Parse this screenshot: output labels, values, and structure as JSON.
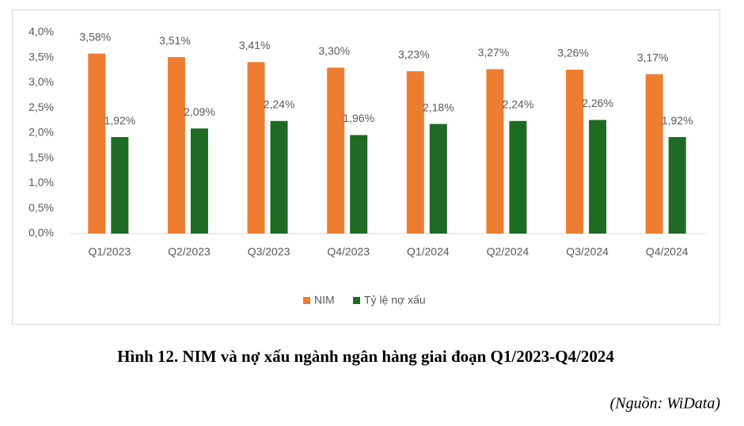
{
  "chart_data": {
    "type": "bar",
    "title": "Hình 12. NIM và nợ xấu ngành ngân hàng giai đoạn Q1/2023-Q4/2024",
    "source": "(Nguồn: WiData)",
    "categories": [
      "Q1/2023",
      "Q2/2023",
      "Q3/2023",
      "Q4/2023",
      "Q1/2024",
      "Q2/2024",
      "Q3/2024",
      "Q4/2024"
    ],
    "series": [
      {
        "name": "NIM",
        "color": "#ed7d31",
        "values": [
          3.58,
          3.51,
          3.41,
          3.3,
          3.23,
          3.27,
          3.26,
          3.17
        ],
        "value_labels": [
          "3,58%",
          "3,51%",
          "3,41%",
          "3,30%",
          "3,23%",
          "3,27%",
          "3,26%",
          "3,17%"
        ]
      },
      {
        "name": "Tỷ lệ nợ xấu",
        "color": "#1e6b23",
        "values": [
          1.92,
          2.09,
          2.24,
          1.96,
          2.18,
          2.24,
          2.26,
          1.92
        ],
        "value_labels": [
          "1,92%",
          "2,09%",
          "2,24%",
          "1,96%",
          "2,18%",
          "2,24%",
          "2,26%",
          "1,92%"
        ]
      }
    ],
    "ylim": [
      0,
      4
    ],
    "yticks": [
      {
        "value": 0,
        "label": "0,0%"
      },
      {
        "value": 0.5,
        "label": "0,5%"
      },
      {
        "value": 1,
        "label": "1,0%"
      },
      {
        "value": 1.5,
        "label": "1,5%"
      },
      {
        "value": 2,
        "label": "2,0%"
      },
      {
        "value": 2.5,
        "label": "2,5%"
      },
      {
        "value": 3,
        "label": "3,0%"
      },
      {
        "value": 3.5,
        "label": "3,5%"
      },
      {
        "value": 4,
        "label": "4,0%"
      }
    ],
    "grid": false,
    "legend": "bottom"
  }
}
